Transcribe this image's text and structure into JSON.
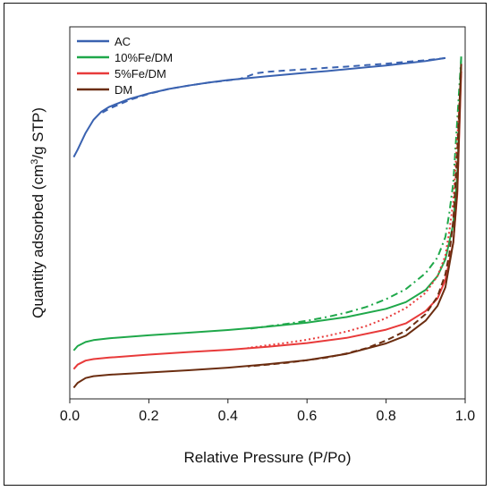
{
  "chart_data": {
    "type": "line",
    "title": "",
    "xlabel": "Relative Pressure (P/Po)",
    "ylabel_main": "Quantity adsorbed (cm",
    "ylabel_sup": "3",
    "ylabel_rest": "/g STP)",
    "xlim": [
      0,
      1.0
    ],
    "ylim": [
      0,
      100
    ],
    "xticks": [
      "0.0",
      "0.2",
      "0.4",
      "0.6",
      "0.8",
      "1.0"
    ],
    "xtick_values": [
      0,
      0.2,
      0.4,
      0.6,
      0.8,
      1.0
    ],
    "yticks_shown": false,
    "legend_position": "top-left",
    "series": [
      {
        "name": "AC",
        "color": "#3a62b0",
        "adsorption": [
          [
            0.01,
            65.0
          ],
          [
            0.02,
            67.0
          ],
          [
            0.04,
            71.5
          ],
          [
            0.06,
            75.0
          ],
          [
            0.08,
            77.2
          ],
          [
            0.1,
            78.5
          ],
          [
            0.15,
            80.6
          ],
          [
            0.2,
            82.1
          ],
          [
            0.25,
            83.3
          ],
          [
            0.3,
            84.2
          ],
          [
            0.35,
            85.0
          ],
          [
            0.4,
            85.7
          ],
          [
            0.45,
            86.2
          ],
          [
            0.5,
            86.7
          ],
          [
            0.55,
            87.2
          ],
          [
            0.6,
            87.7
          ],
          [
            0.65,
            88.1
          ],
          [
            0.7,
            88.6
          ],
          [
            0.75,
            89.1
          ],
          [
            0.8,
            89.6
          ],
          [
            0.85,
            90.2
          ],
          [
            0.9,
            90.8
          ],
          [
            0.95,
            91.6
          ]
        ],
        "desorption": [
          [
            0.95,
            91.6
          ],
          [
            0.9,
            91.0
          ],
          [
            0.85,
            90.6
          ],
          [
            0.8,
            90.1
          ],
          [
            0.75,
            89.7
          ],
          [
            0.7,
            89.3
          ],
          [
            0.65,
            89.0
          ],
          [
            0.6,
            88.6
          ],
          [
            0.55,
            88.3
          ],
          [
            0.5,
            87.9
          ],
          [
            0.47,
            87.5
          ],
          [
            0.45,
            86.7
          ],
          [
            0.43,
            86.0
          ],
          [
            0.4,
            85.6
          ],
          [
            0.35,
            85.0
          ],
          [
            0.3,
            84.2
          ],
          [
            0.25,
            83.3
          ],
          [
            0.2,
            82.0
          ],
          [
            0.15,
            80.3
          ],
          [
            0.1,
            78.0
          ],
          [
            0.08,
            76.8
          ]
        ]
      },
      {
        "name": "10%Fe/DM",
        "color": "#1fa84a",
        "adsorption": [
          [
            0.01,
            13.0
          ],
          [
            0.02,
            14.2
          ],
          [
            0.04,
            15.3
          ],
          [
            0.06,
            15.8
          ],
          [
            0.1,
            16.3
          ],
          [
            0.2,
            17.1
          ],
          [
            0.3,
            17.8
          ],
          [
            0.4,
            18.5
          ],
          [
            0.5,
            19.4
          ],
          [
            0.6,
            20.5
          ],
          [
            0.7,
            22.0
          ],
          [
            0.8,
            24.2
          ],
          [
            0.85,
            26.0
          ],
          [
            0.9,
            29.3
          ],
          [
            0.93,
            33.0
          ],
          [
            0.95,
            37.5
          ],
          [
            0.97,
            47.0
          ],
          [
            0.98,
            60.0
          ],
          [
            0.99,
            92.0
          ]
        ],
        "desorption": [
          [
            0.99,
            92.0
          ],
          [
            0.98,
            75.0
          ],
          [
            0.97,
            58.0
          ],
          [
            0.96,
            50.0
          ],
          [
            0.95,
            43.5
          ],
          [
            0.93,
            38.0
          ],
          [
            0.9,
            33.8
          ],
          [
            0.85,
            29.5
          ],
          [
            0.8,
            26.8
          ],
          [
            0.75,
            24.7
          ],
          [
            0.7,
            23.2
          ],
          [
            0.65,
            22.0
          ],
          [
            0.6,
            21.0
          ],
          [
            0.55,
            20.2
          ],
          [
            0.5,
            19.5
          ],
          [
            0.45,
            18.8
          ]
        ]
      },
      {
        "name": "5%Fe/DM",
        "color": "#e83a3a",
        "adsorption": [
          [
            0.01,
            8.0
          ],
          [
            0.02,
            9.2
          ],
          [
            0.04,
            10.3
          ],
          [
            0.06,
            10.7
          ],
          [
            0.1,
            11.1
          ],
          [
            0.2,
            11.9
          ],
          [
            0.3,
            12.6
          ],
          [
            0.4,
            13.2
          ],
          [
            0.5,
            14.0
          ],
          [
            0.6,
            15.0
          ],
          [
            0.7,
            16.4
          ],
          [
            0.8,
            18.6
          ],
          [
            0.85,
            20.3
          ],
          [
            0.9,
            23.6
          ],
          [
            0.93,
            27.0
          ],
          [
            0.95,
            32.0
          ],
          [
            0.97,
            42.0
          ],
          [
            0.98,
            55.0
          ],
          [
            0.99,
            88.0
          ]
        ],
        "desorption": [
          [
            0.99,
            88.0
          ],
          [
            0.98,
            70.0
          ],
          [
            0.97,
            53.0
          ],
          [
            0.96,
            45.0
          ],
          [
            0.95,
            38.5
          ],
          [
            0.93,
            33.0
          ],
          [
            0.9,
            28.5
          ],
          [
            0.85,
            24.4
          ],
          [
            0.8,
            21.7
          ],
          [
            0.75,
            19.6
          ],
          [
            0.7,
            18.1
          ],
          [
            0.65,
            16.9
          ],
          [
            0.6,
            15.9
          ],
          [
            0.55,
            15.1
          ],
          [
            0.5,
            14.4
          ],
          [
            0.45,
            13.7
          ]
        ]
      },
      {
        "name": "DM",
        "color": "#6b2d10",
        "adsorption": [
          [
            0.01,
            3.0
          ],
          [
            0.02,
            4.3
          ],
          [
            0.04,
            5.6
          ],
          [
            0.06,
            6.1
          ],
          [
            0.1,
            6.5
          ],
          [
            0.2,
            7.1
          ],
          [
            0.3,
            7.7
          ],
          [
            0.4,
            8.4
          ],
          [
            0.5,
            9.3
          ],
          [
            0.6,
            10.4
          ],
          [
            0.7,
            12.1
          ],
          [
            0.8,
            14.9
          ],
          [
            0.85,
            17.0
          ],
          [
            0.9,
            21.0
          ],
          [
            0.93,
            25.0
          ],
          [
            0.95,
            30.0
          ],
          [
            0.97,
            42.0
          ],
          [
            0.98,
            56.0
          ],
          [
            0.99,
            90.0
          ]
        ],
        "desorption": [
          [
            0.99,
            90.0
          ],
          [
            0.98,
            66.0
          ],
          [
            0.97,
            48.0
          ],
          [
            0.96,
            39.0
          ],
          [
            0.95,
            33.5
          ],
          [
            0.93,
            27.5
          ],
          [
            0.9,
            22.8
          ],
          [
            0.85,
            18.3
          ],
          [
            0.8,
            15.7
          ],
          [
            0.75,
            13.6
          ],
          [
            0.7,
            12.2
          ],
          [
            0.65,
            11.1
          ],
          [
            0.6,
            10.4
          ],
          [
            0.55,
            9.7
          ],
          [
            0.5,
            9.2
          ],
          [
            0.45,
            8.7
          ]
        ]
      }
    ]
  }
}
